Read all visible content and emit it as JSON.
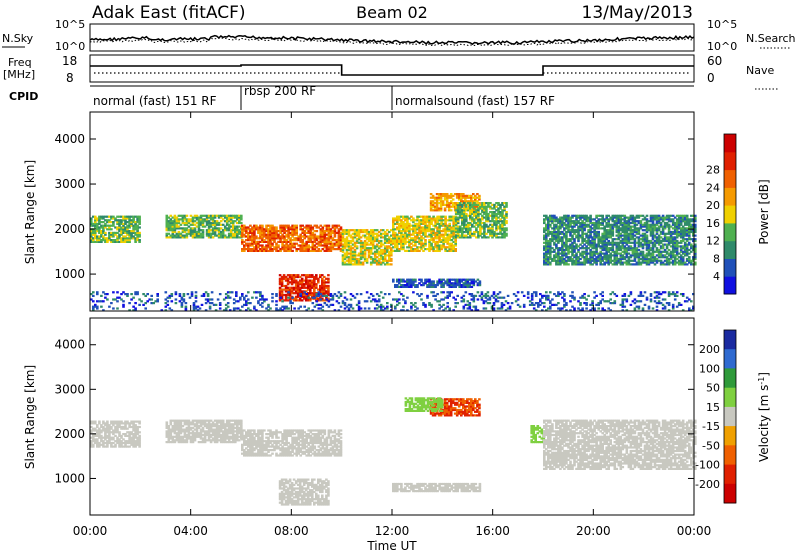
{
  "header": {
    "title": "Adak East (fitACF)",
    "beam": "Beam 02",
    "date": "13/May/2013"
  },
  "noise_panel": {
    "left_label": "N.Sky",
    "left_ticks": [
      "10^5",
      "10^0"
    ],
    "right_ticks": [
      "10^5",
      "10^0"
    ],
    "right_label": "N.Search"
  },
  "freq_panel": {
    "left_label_line1": "Freq",
    "left_label_line2": "[MHz]",
    "left_ticks": [
      "18",
      "8"
    ],
    "right_ticks": [
      "60",
      "0"
    ],
    "right_label": "Nave"
  },
  "cpid": {
    "label": "CPID",
    "segments": [
      {
        "label": "normal (fast) 151 RF",
        "start_hour": 0,
        "end_hour": 6
      },
      {
        "label": "rbsp 200 RF",
        "start_hour": 6,
        "end_hour": 12
      },
      {
        "label": "normalsound (fast) 157 RF",
        "start_hour": 12,
        "end_hour": 24
      }
    ]
  },
  "chart_data": [
    {
      "type": "heatmap",
      "title": "",
      "ylabel": "Slant Range [km]",
      "xlim": [
        0,
        24
      ],
      "ylim": [
        180,
        4600
      ],
      "y_ticks": [
        1000,
        2000,
        3000,
        4000
      ],
      "colorbar": {
        "label": "Power [dB]",
        "ticks": [
          "4",
          "8",
          "12",
          "16",
          "20",
          "24",
          "28"
        ],
        "colors": [
          "#1010e0",
          "#2050b8",
          "#2f8a6a",
          "#4fb050",
          "#f0d000",
          "#f59a00",
          "#f06000",
          "#e02000",
          "#cc0000"
        ]
      },
      "features": [
        {
          "t": [
            0.0,
            2.0
          ],
          "r": [
            1700,
            2300
          ],
          "level": 3
        },
        {
          "t": [
            3.0,
            6.0
          ],
          "r": [
            1800,
            2300
          ],
          "level": 3
        },
        {
          "t": [
            6.0,
            10.0
          ],
          "r": [
            1500,
            2100
          ],
          "level": 6
        },
        {
          "t": [
            7.5,
            9.5
          ],
          "r": [
            400,
            1000
          ],
          "level": 7
        },
        {
          "t": [
            10.0,
            12.0
          ],
          "r": [
            1200,
            2000
          ],
          "level": 4
        },
        {
          "t": [
            12.0,
            14.5
          ],
          "r": [
            1500,
            2300
          ],
          "level": 4
        },
        {
          "t": [
            13.5,
            15.5
          ],
          "r": [
            2400,
            2800
          ],
          "level": 5
        },
        {
          "t": [
            14.5,
            16.5
          ],
          "r": [
            1800,
            2600
          ],
          "level": 3
        },
        {
          "t": [
            18.0,
            24.0
          ],
          "r": [
            1200,
            2300
          ],
          "level": 2
        },
        {
          "t": [
            12.0,
            15.5
          ],
          "r": [
            700,
            900
          ],
          "level": 1
        },
        {
          "t": [
            0.0,
            24.0
          ],
          "r": [
            180,
            600
          ],
          "level": 1
        }
      ]
    },
    {
      "type": "heatmap",
      "title": "",
      "ylabel": "Slant Range [km]",
      "xlabel": "Time UT",
      "x_ticks": [
        "00:00",
        "04:00",
        "08:00",
        "12:00",
        "16:00",
        "20:00",
        "00:00"
      ],
      "xlim": [
        0,
        24
      ],
      "ylim": [
        180,
        4600
      ],
      "y_ticks": [
        1000,
        2000,
        3000,
        4000
      ],
      "colorbar": {
        "label": "Velocity [m s^-1]",
        "ticks": [
          "200",
          "100",
          "50",
          "15",
          "-15",
          "-50",
          "-100",
          "-200"
        ],
        "colors": [
          "#1a2aa0",
          "#2f6ad0",
          "#2f9a3a",
          "#7fd040",
          "#c8c8c0",
          "#f0a000",
          "#f06000",
          "#e02000",
          "#cc0000"
        ]
      },
      "ground_scatter_color": "#c8c8c0",
      "features": [
        {
          "t": [
            0.0,
            2.0
          ],
          "r": [
            1700,
            2300
          ],
          "velocity": 0
        },
        {
          "t": [
            3.0,
            6.0
          ],
          "r": [
            1800,
            2300
          ],
          "velocity": 0
        },
        {
          "t": [
            6.0,
            10.0
          ],
          "r": [
            1500,
            2100
          ],
          "velocity": 0
        },
        {
          "t": [
            7.5,
            9.5
          ],
          "r": [
            400,
            1000
          ],
          "velocity": 0
        },
        {
          "t": [
            13.5,
            15.5
          ],
          "r": [
            2400,
            2800
          ],
          "velocity": -150
        },
        {
          "t": [
            12.5,
            14.0
          ],
          "r": [
            2500,
            2800
          ],
          "velocity": 40
        },
        {
          "t": [
            17.5,
            18.0
          ],
          "r": [
            1800,
            2200
          ],
          "velocity": 30
        },
        {
          "t": [
            12.0,
            15.5
          ],
          "r": [
            700,
            900
          ],
          "velocity": 0
        },
        {
          "t": [
            18.0,
            24.0
          ],
          "r": [
            1200,
            2300
          ],
          "velocity": 0
        }
      ]
    }
  ]
}
